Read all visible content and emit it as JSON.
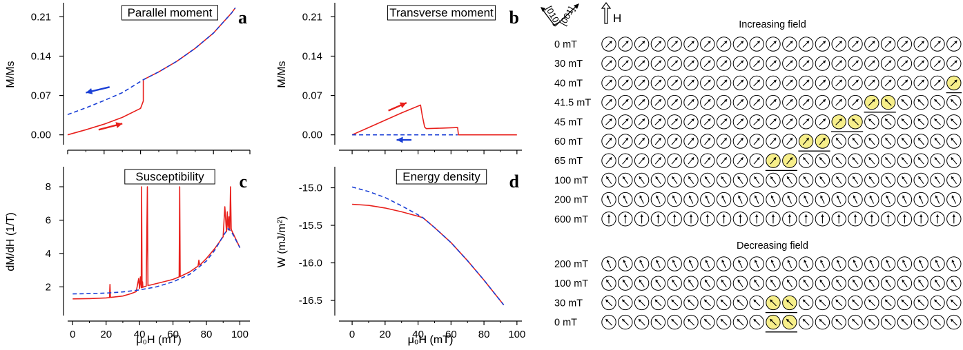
{
  "colors": {
    "increasing": "#e8201c",
    "decreasing": "#1a3fd6",
    "highlight": "#f7ef8a"
  },
  "chart_data": [
    {
      "id": "a",
      "type": "line",
      "title": "Parallel moment",
      "letter": "a",
      "xlabel": "",
      "ylabel": "M/Ms",
      "xlim": [
        0,
        100
      ],
      "ylim": [
        -0.02,
        0.235
      ],
      "xticks": [
        0,
        20,
        40,
        60,
        80,
        100
      ],
      "yticks": [
        0.0,
        0.07,
        0.14,
        0.21
      ],
      "ytick_labels": [
        "0.00",
        "0.07",
        "0.14",
        "0.21"
      ],
      "series": [
        {
          "color": "increasing",
          "dash": false,
          "x": [
            0,
            10,
            20,
            30,
            40,
            41.5,
            41.5,
            50,
            60,
            70,
            80,
            90,
            92
          ],
          "y": [
            0.0,
            0.009,
            0.019,
            0.031,
            0.047,
            0.06,
            0.098,
            0.112,
            0.131,
            0.154,
            0.181,
            0.217,
            0.226
          ]
        },
        {
          "color": "decreasing",
          "dash": true,
          "x": [
            0,
            10,
            20,
            30,
            41.5,
            50,
            60,
            70,
            80,
            90,
            92
          ],
          "y": [
            0.036,
            0.048,
            0.061,
            0.075,
            0.098,
            0.112,
            0.131,
            0.154,
            0.181,
            0.217,
            0.226
          ]
        }
      ],
      "arrows": [
        {
          "color": "increasing",
          "from": [
            17,
            0.009
          ],
          "to": [
            30,
            0.02
          ]
        },
        {
          "color": "decreasing",
          "from": [
            23,
            0.085
          ],
          "to": [
            10,
            0.075
          ]
        }
      ]
    },
    {
      "id": "b",
      "type": "line",
      "title": "Transverse moment",
      "letter": "b",
      "xlabel": "μ₀H (mT)",
      "ylabel": "M/Ms",
      "xlim": [
        -8,
        103
      ],
      "ylim": [
        -0.02,
        0.235
      ],
      "xticks": [
        0,
        20,
        40,
        60,
        80,
        100
      ],
      "yticks": [
        0.0,
        0.07,
        0.14,
        0.21
      ],
      "ytick_labels": [
        "0.00",
        "0.07",
        "0.14",
        "0.21"
      ],
      "series": [
        {
          "color": "increasing",
          "dash": false,
          "x": [
            0,
            10,
            20,
            30,
            41.5,
            42.5,
            44,
            45,
            55,
            64,
            64.5,
            80,
            100
          ],
          "y": [
            0.0,
            0.013,
            0.026,
            0.039,
            0.053,
            0.035,
            0.014,
            0.011,
            0.012,
            0.013,
            0.0,
            0.0,
            0.0
          ]
        },
        {
          "color": "decreasing",
          "dash": true,
          "x": [
            0,
            20,
            40,
            60,
            64
          ],
          "y": [
            0.0,
            0.0,
            0.0,
            0.0,
            0.0
          ]
        }
      ],
      "arrows": [
        {
          "color": "increasing",
          "from": [
            22,
            0.043
          ],
          "to": [
            33,
            0.057
          ]
        },
        {
          "color": "decreasing",
          "from": [
            36,
            -0.009
          ],
          "to": [
            27,
            -0.009
          ]
        }
      ]
    },
    {
      "id": "c",
      "type": "line",
      "title": "Susceptibility",
      "letter": "c",
      "xlabel": "μ₀H (mT)",
      "ylabel": "dM/dH (1/T)",
      "xlim": [
        -3,
        106
      ],
      "ylim": [
        0.2,
        9.2
      ],
      "xticks": [
        0,
        20,
        40,
        60,
        80,
        100
      ],
      "yticks": [
        2,
        4,
        6,
        8
      ],
      "ytick_labels": [
        "2",
        "4",
        "6",
        "8"
      ],
      "series": [
        {
          "color": "increasing",
          "dash": false,
          "x": [
            0,
            10,
            20,
            22,
            22.3,
            22.6,
            30,
            35,
            38,
            39.5,
            40,
            40.5,
            41,
            41.2,
            41.5,
            41.8,
            42,
            44,
            44.7,
            45,
            45.3,
            46,
            50,
            55,
            60,
            63.7,
            64,
            64.3,
            70,
            75,
            75.5,
            76,
            80,
            85,
            90,
            91,
            92,
            92.5,
            93,
            93.5,
            94,
            94.4,
            94.8,
            95,
            100
          ],
          "y": [
            1.28,
            1.3,
            1.34,
            1.36,
            2.15,
            1.37,
            1.45,
            1.6,
            1.72,
            2.5,
            1.9,
            2.6,
            1.95,
            8.0,
            1.96,
            2.3,
            1.98,
            2.05,
            8.0,
            2.08,
            2.1,
            2.1,
            2.2,
            2.32,
            2.45,
            2.6,
            8.0,
            2.62,
            2.9,
            3.25,
            3.6,
            3.3,
            3.7,
            4.3,
            5.0,
            6.8,
            5.3,
            6.5,
            5.4,
            6.2,
            5.45,
            8.0,
            5.5,
            5.4,
            4.35
          ]
        },
        {
          "color": "decreasing",
          "dash": true,
          "x": [
            0,
            10,
            20,
            30,
            40,
            50,
            60,
            70,
            80,
            85,
            90,
            93,
            95,
            100
          ],
          "y": [
            1.58,
            1.6,
            1.63,
            1.7,
            1.82,
            2.0,
            2.3,
            2.75,
            3.55,
            4.2,
            5.05,
            5.5,
            5.3,
            4.35
          ]
        }
      ]
    },
    {
      "id": "d",
      "type": "line",
      "title": "Energy density",
      "letter": "d",
      "xlabel": "μ₀H (mT)",
      "ylabel": "W (mJ/m²)",
      "xlim": [
        -8,
        103
      ],
      "ylim": [
        -16.72,
        -14.72
      ],
      "xticks": [
        0,
        20,
        40,
        60,
        80,
        100
      ],
      "yticks": [
        -15.0,
        -15.5,
        -16.0,
        -16.5
      ],
      "ytick_labels": [
        "-15.0",
        "-15.5",
        "-16.0",
        "-16.5"
      ],
      "series": [
        {
          "color": "increasing",
          "dash": false,
          "x": [
            0,
            10,
            20,
            30,
            40,
            43,
            50,
            60,
            70,
            80,
            92
          ],
          "y": [
            -15.22,
            -15.235,
            -15.27,
            -15.32,
            -15.38,
            -15.4,
            -15.53,
            -15.73,
            -15.97,
            -16.23,
            -16.56
          ]
        },
        {
          "color": "decreasing",
          "dash": true,
          "x": [
            0,
            10,
            20,
            30,
            40,
            43,
            50,
            60,
            70,
            80,
            92
          ],
          "y": [
            -14.99,
            -15.05,
            -15.13,
            -15.24,
            -15.36,
            -15.4,
            -15.53,
            -15.73,
            -15.97,
            -16.23,
            -16.56
          ]
        }
      ]
    }
  ],
  "spin_panel": {
    "crystal_axes": [
      "[010]",
      "[001]"
    ],
    "field_label": "H",
    "increasing_title": "Increasing field",
    "decreasing_title": "Decreasing field",
    "increasing_rows": [
      {
        "label": "0 mT",
        "angles": [
          45,
          45,
          45,
          45,
          45,
          45,
          45,
          45,
          45,
          45,
          45,
          45,
          45,
          45,
          45,
          45,
          45,
          45,
          45,
          45,
          45,
          45
        ],
        "highlight": [],
        "underline": []
      },
      {
        "label": "30 mT",
        "angles": [
          45,
          45,
          45,
          45,
          45,
          45,
          45,
          45,
          45,
          45,
          45,
          45,
          45,
          45,
          45,
          45,
          45,
          45,
          45,
          45,
          45,
          45
        ],
        "highlight": [],
        "underline": []
      },
      {
        "label": "40 mT",
        "angles": [
          45,
          45,
          45,
          45,
          45,
          45,
          45,
          45,
          45,
          45,
          45,
          45,
          45,
          45,
          45,
          45,
          45,
          45,
          45,
          45,
          45,
          45
        ],
        "highlight": [
          21
        ],
        "underline": [
          21
        ]
      },
      {
        "label": "41.5 mT",
        "angles": [
          45,
          45,
          45,
          45,
          45,
          45,
          45,
          45,
          45,
          45,
          45,
          45,
          45,
          45,
          45,
          45,
          45,
          -45,
          -45,
          -45,
          -45,
          -45
        ],
        "highlight": [
          16,
          17
        ],
        "underline": [
          16,
          17
        ]
      },
      {
        "label": "45 mT",
        "angles": [
          45,
          45,
          45,
          45,
          45,
          45,
          45,
          45,
          45,
          45,
          45,
          45,
          45,
          45,
          45,
          -45,
          -45,
          -45,
          -45,
          -45,
          -45,
          -45
        ],
        "highlight": [
          14,
          15
        ],
        "underline": [
          14,
          15
        ]
      },
      {
        "label": "60 mT",
        "angles": [
          40,
          40,
          40,
          40,
          40,
          40,
          40,
          40,
          40,
          40,
          40,
          40,
          40,
          40,
          -40,
          -40,
          -40,
          -40,
          -40,
          -40,
          -40,
          -40
        ],
        "highlight": [
          12,
          13
        ],
        "underline": [
          12,
          13
        ]
      },
      {
        "label": "65 mT",
        "angles": [
          40,
          40,
          40,
          40,
          40,
          40,
          40,
          40,
          40,
          40,
          40,
          40,
          -40,
          -40,
          -40,
          -40,
          -40,
          -40,
          -40,
          -40,
          -40,
          -40
        ],
        "highlight": [
          10,
          11
        ],
        "underline": [
          10,
          11
        ]
      },
      {
        "label": "100 mT",
        "angles": [
          -35,
          -35,
          -35,
          -35,
          -35,
          -35,
          -35,
          -35,
          -35,
          -35,
          -35,
          -35,
          -35,
          -35,
          -35,
          -35,
          -35,
          -35,
          -35,
          -35,
          -35,
          -35
        ],
        "highlight": [],
        "underline": []
      },
      {
        "label": "200 mT",
        "angles": [
          -25,
          -25,
          -25,
          -25,
          -25,
          -25,
          -25,
          -25,
          -25,
          -25,
          -25,
          -25,
          -25,
          -25,
          -25,
          -25,
          -25,
          -25,
          -25,
          -25,
          -25,
          -25
        ],
        "highlight": [],
        "underline": []
      },
      {
        "label": "600 mT",
        "angles": [
          0,
          0,
          0,
          0,
          0,
          0,
          0,
          0,
          0,
          0,
          0,
          0,
          0,
          0,
          0,
          0,
          0,
          0,
          0,
          0,
          0,
          0
        ],
        "highlight": [],
        "underline": []
      }
    ],
    "decreasing_rows": [
      {
        "label": "200 mT",
        "angles": [
          -25,
          -25,
          -25,
          -25,
          -25,
          -25,
          -25,
          -25,
          -25,
          -25,
          -25,
          -25,
          -25,
          -25,
          -25,
          -25,
          -25,
          -25,
          -25,
          -25,
          -25,
          -25
        ],
        "highlight": [],
        "underline": []
      },
      {
        "label": "100 mT",
        "angles": [
          -35,
          -35,
          -35,
          -35,
          -35,
          -35,
          -35,
          -35,
          -35,
          -35,
          -35,
          -35,
          -35,
          -35,
          -35,
          -35,
          -35,
          -35,
          -35,
          -35,
          -35,
          -35
        ],
        "highlight": [],
        "underline": []
      },
      {
        "label": "30 mT",
        "angles": [
          -45,
          -45,
          -45,
          -45,
          -45,
          -45,
          -45,
          -45,
          -45,
          -45,
          -45,
          -45,
          -45,
          -45,
          -45,
          -45,
          -45,
          -45,
          -45,
          -45,
          -45,
          -45
        ],
        "highlight": [
          10,
          11
        ],
        "underline": [
          10,
          11
        ]
      },
      {
        "label": "0 mT",
        "angles": [
          -45,
          -45,
          -45,
          -45,
          -45,
          -45,
          -45,
          -45,
          -45,
          -45,
          -45,
          -45,
          -45,
          -45,
          -45,
          -45,
          -45,
          -45,
          -45,
          -45,
          -45,
          -45
        ],
        "highlight": [
          10,
          11
        ],
        "underline": [
          10,
          11
        ]
      }
    ]
  }
}
